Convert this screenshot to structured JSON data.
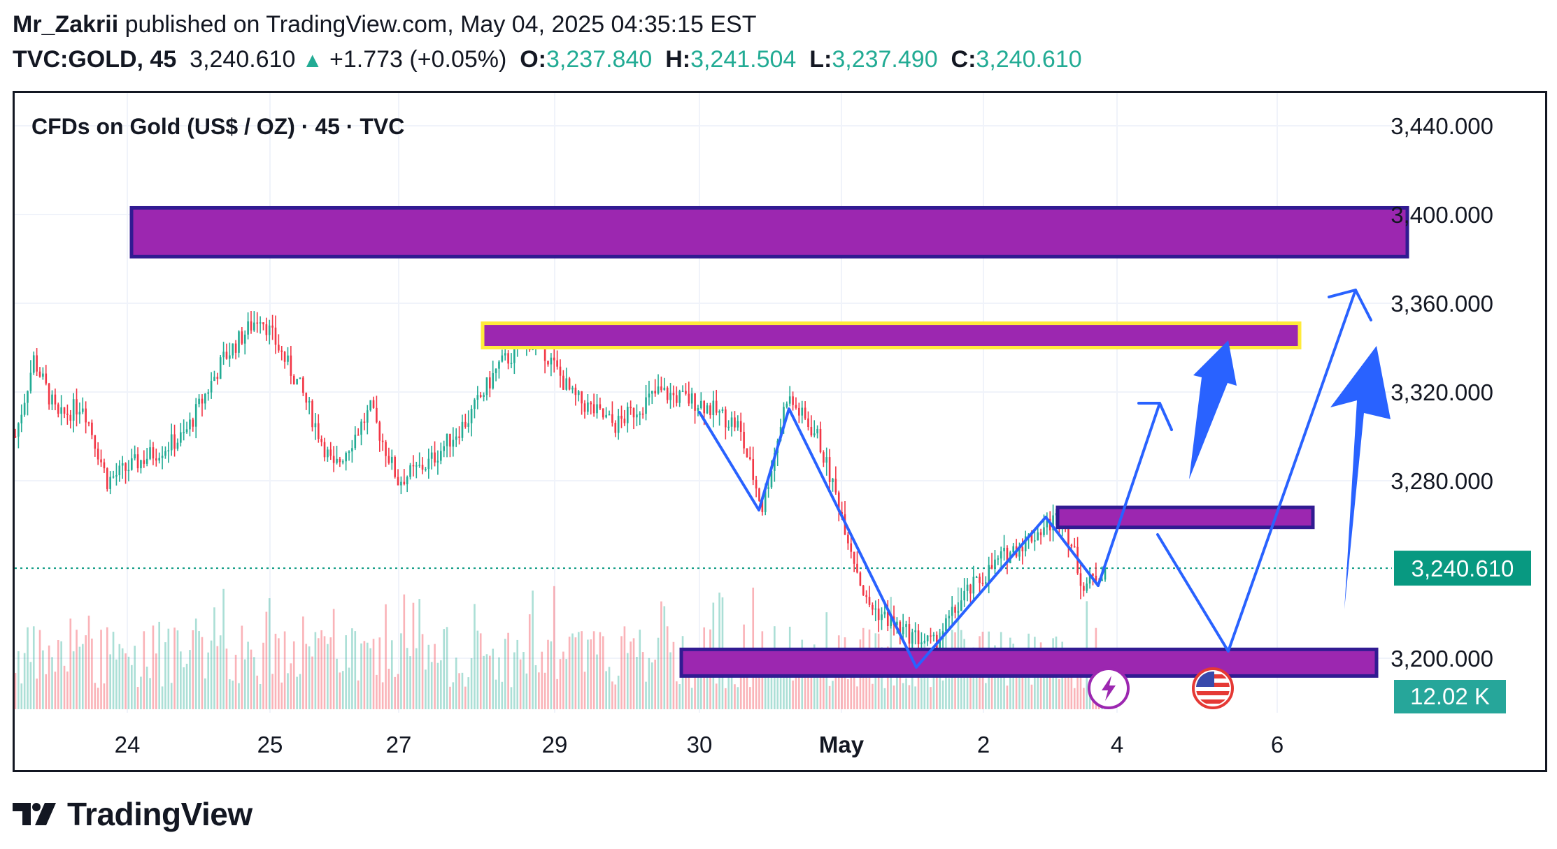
{
  "header": {
    "author": "Mr_Zakrii",
    "published_text": " published on TradingView.com, May 04, 2025 04:35:15 EST",
    "symbol": "TVC:GOLD, 45",
    "price": "3,240.610",
    "change_arrow": "▲",
    "change": "+1.773 (+0.05%)",
    "o_label": "O:",
    "o_value": "3,237.840",
    "h_label": "H:",
    "h_value": "3,241.504",
    "l_label": "L:",
    "l_value": "3,237.490",
    "c_label": "C:",
    "c_value": "3,240.610"
  },
  "footer": {
    "brand": "TradingView"
  },
  "icons": {
    "lightning": "lightning-icon",
    "us_flag": "us-flag-icon"
  },
  "colors": {
    "up": "#22ab94",
    "down": "#f23645",
    "zone_fill": "#9c27b0",
    "zone_border": "#311b92",
    "highlight_border": "#ffeb3b",
    "projection": "#2962ff",
    "price_label_bg": "#089981",
    "volume_label_bg": "#26a69a"
  },
  "chart_data": {
    "type": "candlestick",
    "title": "CFDs on Gold (US$ / OZ) · 45 · TVC",
    "x_tick_labels": [
      "24",
      "25",
      "27",
      "29",
      "30",
      "May",
      "2",
      "4",
      "6"
    ],
    "y_tick_labels": [
      "3,440.000",
      "3,400.000",
      "3,360.000",
      "3,320.000",
      "3,280.000",
      "3,200.000"
    ],
    "y_ticks": [
      3440,
      3400,
      3360,
      3320,
      3280,
      3200
    ],
    "ylim": [
      3177,
      3452
    ],
    "last_price": 3240.61,
    "last_price_label": "3,240.610",
    "volume_label": "12.02 K",
    "price_path_key_points": [
      {
        "t": 0,
        "p": 3300
      },
      {
        "t": 6,
        "p": 3335
      },
      {
        "t": 14,
        "p": 3308
      },
      {
        "t": 22,
        "p": 3315
      },
      {
        "t": 30,
        "p": 3280
      },
      {
        "t": 42,
        "p": 3290
      },
      {
        "t": 55,
        "p": 3300
      },
      {
        "t": 68,
        "p": 3335
      },
      {
        "t": 80,
        "p": 3355
      },
      {
        "t": 93,
        "p": 3322
      },
      {
        "t": 104,
        "p": 3285
      },
      {
        "t": 116,
        "p": 3312
      },
      {
        "t": 125,
        "p": 3280
      },
      {
        "t": 135,
        "p": 3288
      },
      {
        "t": 148,
        "p": 3308
      },
      {
        "t": 158,
        "p": 3332
      },
      {
        "t": 170,
        "p": 3345
      },
      {
        "t": 182,
        "p": 3318
      },
      {
        "t": 196,
        "p": 3305
      },
      {
        "t": 210,
        "p": 3320
      },
      {
        "t": 224,
        "p": 3315
      },
      {
        "t": 236,
        "p": 3305
      },
      {
        "t": 244,
        "p": 3268
      },
      {
        "t": 252,
        "p": 3318
      },
      {
        "t": 262,
        "p": 3300
      },
      {
        "t": 270,
        "p": 3265
      },
      {
        "t": 278,
        "p": 3225
      },
      {
        "t": 290,
        "p": 3212
      },
      {
        "t": 300,
        "p": 3206
      },
      {
        "t": 310,
        "p": 3228
      },
      {
        "t": 322,
        "p": 3245
      },
      {
        "t": 335,
        "p": 3258
      },
      {
        "t": 342,
        "p": 3265
      },
      {
        "t": 349,
        "p": 3232
      },
      {
        "t": 356,
        "p": 3240.61
      }
    ],
    "zones": [
      {
        "name": "supply-zone-top",
        "from": 3381,
        "to": 3403
      },
      {
        "name": "resistance-zone-highlighted",
        "from": 3340,
        "to": 3351
      },
      {
        "name": "mid-zone",
        "from": 3259,
        "to": 3268
      },
      {
        "name": "demand-zone-bottom",
        "from": 3192,
        "to": 3204
      }
    ],
    "projections": [
      {
        "name": "scenario-a-path",
        "points": [
          {
            "x_day": "3",
            "p": 3232
          },
          {
            "x_day": "4",
            "p": 3320
          }
        ]
      },
      {
        "name": "scenario-b-path",
        "points": [
          {
            "x_day": "4",
            "p": 3261
          },
          {
            "x_day": "5",
            "p": 3206
          },
          {
            "x_day": "6",
            "p": 3365
          }
        ]
      }
    ]
  }
}
